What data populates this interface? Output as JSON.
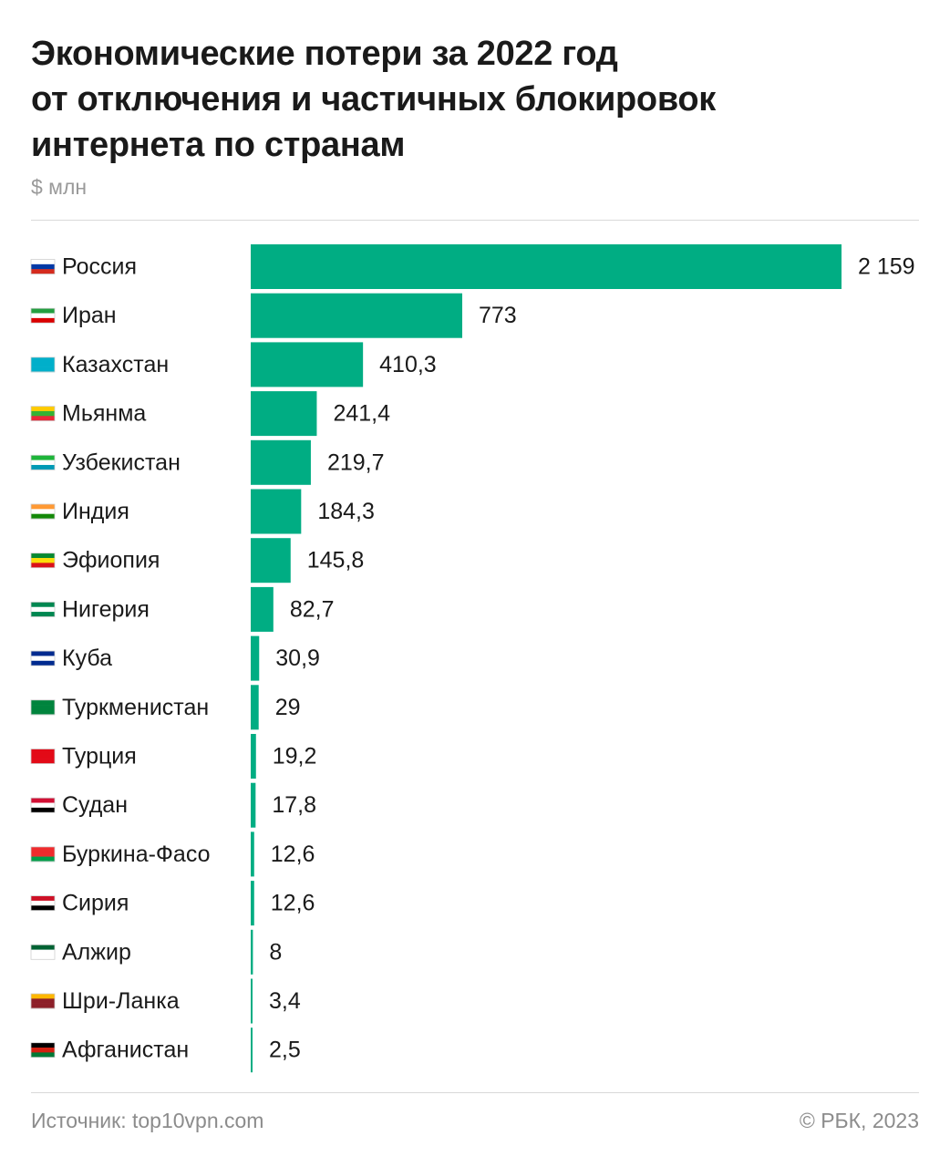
{
  "title_lines": [
    "Экономические потери за 2022 год",
    "от отключения и частичных блокировок",
    "интернета по странам"
  ],
  "unit": "$ млн",
  "footer": {
    "source": "Источник: top10vpn.com",
    "copyright": "© РБК, 2023"
  },
  "colors": {
    "bar": "#00AD83",
    "text": "#1a1a1a",
    "muted": "#9a9a9a"
  },
  "chart_data": {
    "type": "bar",
    "orientation": "horizontal",
    "title": "Экономические потери за 2022 год от отключения и частичных блокировок интернета по странам",
    "ylabel": "$ млн",
    "categories": [
      "Россия",
      "Иран",
      "Казахстан",
      "Мьянма",
      "Узбекистан",
      "Индия",
      "Эфиопия",
      "Нигерия",
      "Куба",
      "Туркменистан",
      "Турция",
      "Судан",
      "Буркина-Фасо",
      "Сирия",
      "Алжир",
      "Шри-Ланка",
      "Афганистан"
    ],
    "values": [
      2159,
      773,
      410.3,
      241.4,
      219.7,
      184.3,
      145.8,
      82.7,
      30.9,
      29,
      19.2,
      17.8,
      12.6,
      12.6,
      8,
      3.4,
      2.5
    ],
    "value_labels": [
      "2 159",
      "773",
      "410,3",
      "241,4",
      "219,7",
      "184,3",
      "145,8",
      "82,7",
      "30,9",
      "29",
      "19,2",
      "17,8",
      "12,6",
      "12,6",
      "8",
      "3,4",
      "2,5"
    ],
    "flags": [
      [
        "#ffffff",
        "#0039a6",
        "#d52b1e"
      ],
      [
        "#239f40",
        "#ffffff",
        "#da0000"
      ],
      [
        "#00afca",
        "#00afca",
        "#00afca"
      ],
      [
        "#fecb00",
        "#34b233",
        "#ea2839"
      ],
      [
        "#1eb53a",
        "#ffffff",
        "#0099b5"
      ],
      [
        "#ff9933",
        "#ffffff",
        "#138808"
      ],
      [
        "#078930",
        "#fcdd09",
        "#da121a"
      ],
      [
        "#008751",
        "#ffffff",
        "#008751"
      ],
      [
        "#002a8f",
        "#ffffff",
        "#002a8f"
      ],
      [
        "#00843d",
        "#00843d",
        "#00843d"
      ],
      [
        "#e30a17",
        "#e30a17",
        "#e30a17"
      ],
      [
        "#d21034",
        "#ffffff",
        "#000000"
      ],
      [
        "#ef2b2d",
        "#ef2b2d",
        "#009e49"
      ],
      [
        "#ce1126",
        "#ffffff",
        "#000000"
      ],
      [
        "#006233",
        "#ffffff",
        "#ffffff"
      ],
      [
        "#ffb700",
        "#8d2029",
        "#8d2029"
      ],
      [
        "#000000",
        "#d32011",
        "#007a36"
      ]
    ],
    "xlim": [
      0,
      2159
    ],
    "grid": false,
    "legend": "none"
  }
}
